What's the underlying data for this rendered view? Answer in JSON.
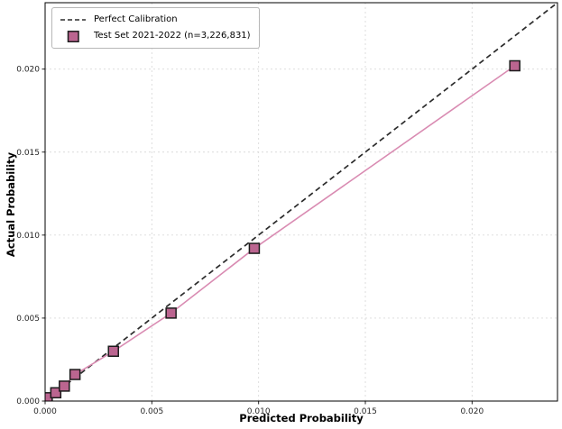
{
  "chart_data": {
    "type": "line",
    "title": "",
    "xlabel": "Predicted Probability",
    "ylabel": "Actual Probability",
    "xlim": [
      0,
      0.024
    ],
    "ylim": [
      0,
      0.024
    ],
    "xticks": [
      0,
      0.005,
      0.01,
      0.015,
      0.02
    ],
    "yticks": [
      0,
      0.005,
      0.01,
      0.015,
      0.02
    ],
    "tick_decimals": 3,
    "grid": true,
    "grid_color": "#dadada",
    "legend_position": "upper-left",
    "series": [
      {
        "name": "Perfect Calibration",
        "style": "dashed",
        "color": "#2b2b2b",
        "points": [
          [
            0,
            0
          ],
          [
            0.024,
            0.024
          ]
        ]
      },
      {
        "name": "Test Set 2021-2022 (n=3,226,831)",
        "style": "line+markers",
        "marker": "square",
        "line_color": "#d98bb2",
        "marker_fill": "#bb6590",
        "marker_edge": "#1c1c1c",
        "points": [
          [
            0.0001,
            0.0002
          ],
          [
            0.0005,
            0.0005
          ],
          [
            0.0009,
            0.0009
          ],
          [
            0.0014,
            0.0016
          ],
          [
            0.0032,
            0.003
          ],
          [
            0.0059,
            0.0053
          ],
          [
            0.0098,
            0.0092
          ],
          [
            0.022,
            0.0202
          ]
        ]
      }
    ]
  }
}
